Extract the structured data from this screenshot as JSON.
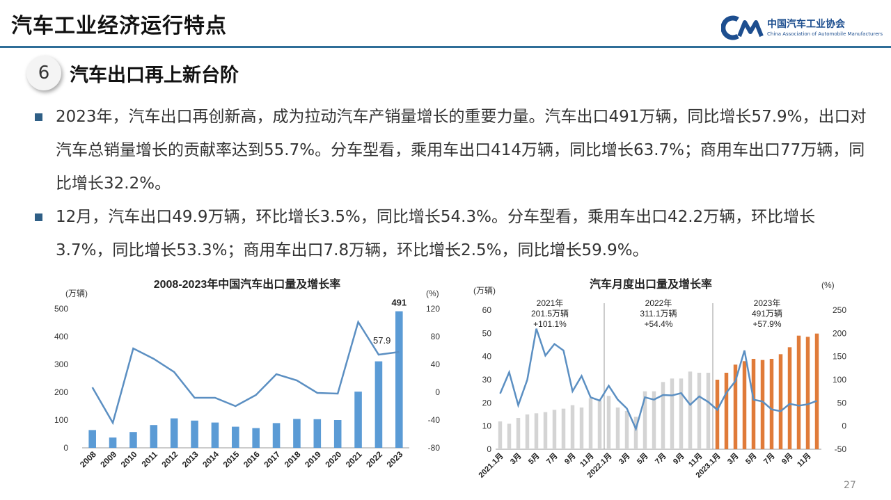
{
  "header": {
    "title": "汽车工业经济运行特点",
    "logo_cn": "中国汽车工业协会",
    "logo_en": "China Association of Automobile Manufacturers"
  },
  "section": {
    "number": "6",
    "title": "汽车出口再上新台阶"
  },
  "bullets": [
    "2023年，汽车出口再创新高，成为拉动汽车产销量增长的重要力量。汽车出口491万辆，同比增长57.9%，出口对汽车总销量增长的贡献率达到55.7%。分车型看，乘用车出口414万辆，同比增长63.7%；商用车出口77万辆，同比增长32.2%。",
    "12月，汽车出口49.9万辆，环比增长3.5%，同比增长54.3%。分车型看，乘用车出口42.2万辆，环比增长3.7%，同比增长53.3%；商用车出口7.8万辆，环比增长2.5%，同比增长59.9%。"
  ],
  "page_number": "27",
  "colors": {
    "accent": "#2f6e98",
    "bar_blue": "#5b9bd5",
    "bar_gray": "#d4d4d4",
    "bar_orange": "#e07b39",
    "line": "#5b8fc2"
  },
  "chart_data": [
    {
      "type": "bar",
      "title": "2008-2023年中国汽车出口量及增长率",
      "ylabel": "(万辆)",
      "y2label": "(%)",
      "categories": [
        "2008",
        "2009",
        "2010",
        "2011",
        "2012",
        "2013",
        "2014",
        "2015",
        "2016",
        "2017",
        "2018",
        "2019",
        "2020",
        "2021",
        "2022",
        "2023"
      ],
      "series": [
        {
          "values": [
            64,
            37,
            57,
            82,
            106,
            98,
            91,
            76,
            71,
            89,
            104,
            103,
            100,
            202,
            311,
            491
          ]
        },
        {
          "values": [
            7,
            -44,
            63,
            48,
            29,
            -8,
            -8,
            -20,
            -4,
            26,
            17,
            -1,
            -2,
            101,
            54,
            57.9
          ]
        }
      ],
      "ylim": [
        0,
        500
      ],
      "y2lim": [
        -80,
        120
      ],
      "yticks": [
        "0",
        "100",
        "200",
        "300",
        "400",
        "500"
      ],
      "y2ticks": [
        "-80",
        "-40",
        "0",
        "40",
        "80",
        "120"
      ],
      "labels": {
        "bar_last": "491",
        "line_last": "57.9"
      }
    },
    {
      "type": "bar",
      "title": "汽车月度出口量及增长率",
      "ylabel": "(万辆)",
      "y2label": "(%)",
      "categories": [
        "2021.1月",
        "2月",
        "3月",
        "4月",
        "5月",
        "6月",
        "7月",
        "8月",
        "9月",
        "10月",
        "11月",
        "12月",
        "2022.1月",
        "2月",
        "3月",
        "4月",
        "5月",
        "6月",
        "7月",
        "8月",
        "9月",
        "10月",
        "11月",
        "12月",
        "2023.1月",
        "2月",
        "3月",
        "4月",
        "5月",
        "6月",
        "7月",
        "8月",
        "9月",
        "10月",
        "11月",
        "12月"
      ],
      "shown_tick_labels": [
        "2021.1月",
        "3月",
        "5月",
        "7月",
        "9月",
        "11月",
        "2022.1月",
        "3月",
        "5月",
        "7月",
        "9月",
        "11月",
        "2023.1月",
        "3月",
        "5月",
        "7月",
        "9月",
        "11月"
      ],
      "series": [
        {
          "values": [
            12,
            11,
            13.5,
            15,
            15.5,
            16,
            17,
            17.5,
            19,
            18,
            22,
            21,
            23,
            18,
            16.5,
            14,
            25,
            25,
            29,
            30.5,
            30.5,
            33.5,
            33,
            33,
            30,
            33,
            36.5,
            38,
            39,
            38.5,
            39,
            41,
            44,
            49,
            48.5,
            49.9
          ]
        },
        {
          "values": [
            70,
            116,
            45,
            100,
            210,
            152,
            177,
            163,
            75,
            108,
            62,
            55,
            87,
            57,
            38,
            -6,
            62,
            57,
            67,
            66,
            71,
            46,
            64,
            52,
            35,
            72,
            97,
            163,
            57,
            53,
            36,
            32,
            48,
            44,
            47,
            54.3
          ]
        }
      ],
      "ylim": [
        0,
        60
      ],
      "y2lim": [
        -50,
        250
      ],
      "yticks": [
        "0",
        "10",
        "20",
        "30",
        "40",
        "50",
        "60"
      ],
      "y2ticks": [
        "-50",
        "0",
        "50",
        "100",
        "150",
        "200",
        "250"
      ],
      "annotations": [
        {
          "year": "2021年",
          "volume": "201.5万辆",
          "growth": "+101.1%"
        },
        {
          "year": "2022年",
          "volume": "311.1万辆",
          "growth": "+54.4%"
        },
        {
          "year": "2023年",
          "volume": "491万辆",
          "growth": "+57.9%"
        }
      ]
    }
  ]
}
